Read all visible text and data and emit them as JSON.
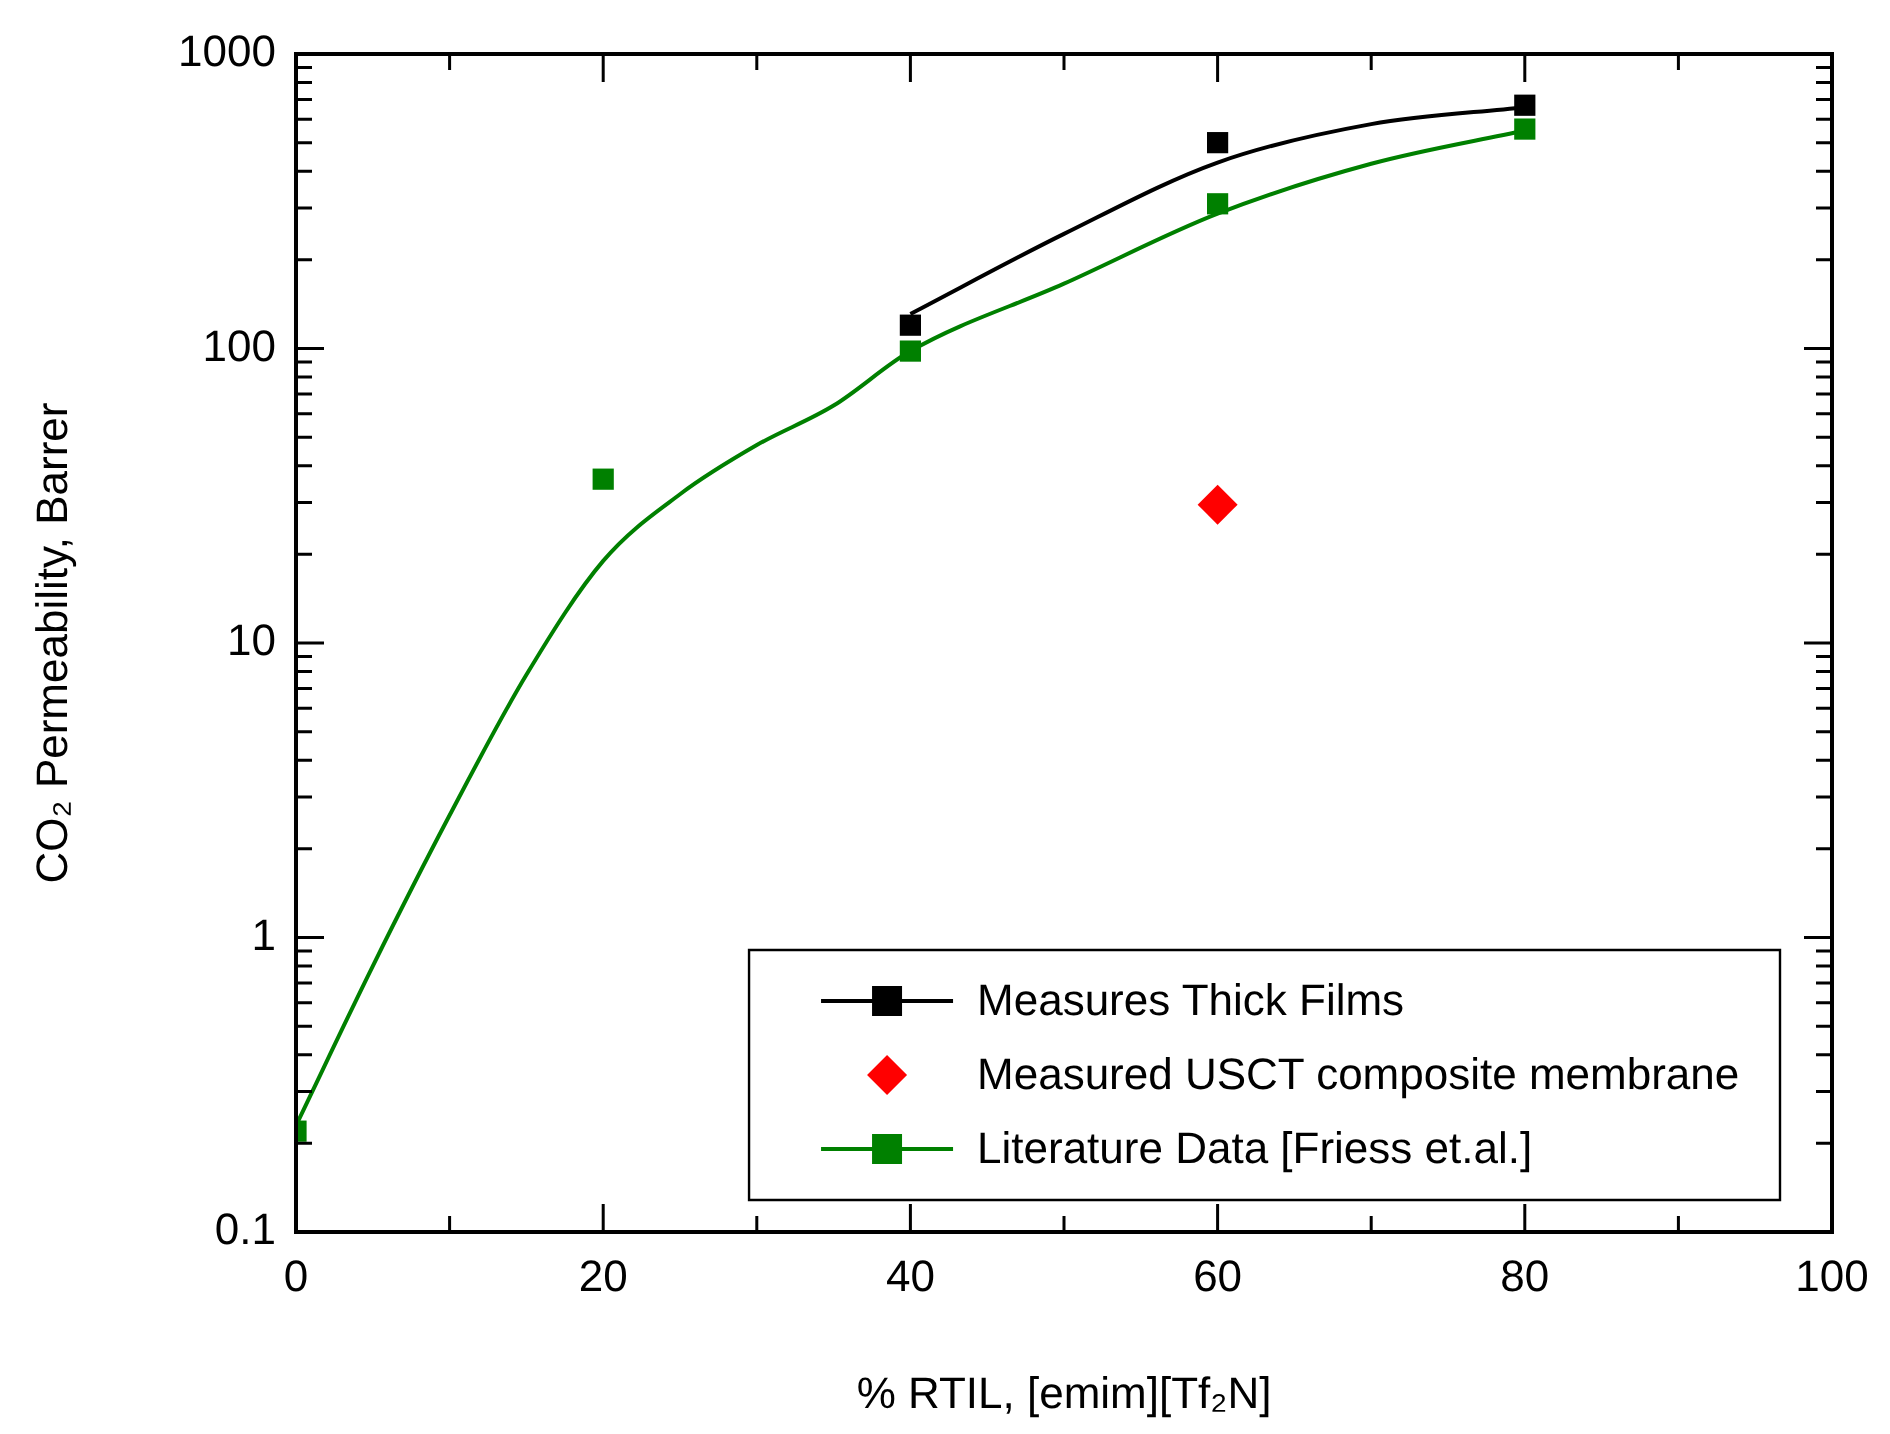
{
  "chart_data": {
    "type": "scatter",
    "xlabel": "% RTIL, [emim][Tf₂N]",
    "ylabel": "CO₂ Permeability, Barrer",
    "xlim": [
      0,
      100
    ],
    "xticks": [
      0,
      {
        "value": 10,
        "label": null
      },
      20,
      {
        "value": 30,
        "label": null
      },
      40,
      {
        "value": 50,
        "label": null
      },
      60,
      {
        "value": 70,
        "label": null
      },
      80,
      {
        "value": 90,
        "label": null
      },
      100
    ],
    "ylim": [
      0.1,
      1000
    ],
    "log": "y",
    "yticks": [
      0.1,
      {
        "value": 0.2,
        "label": null
      },
      {
        "value": 0.3,
        "label": null
      },
      {
        "value": 0.4,
        "label": null
      },
      {
        "value": 0.5,
        "label": null
      },
      {
        "value": 0.6,
        "label": null
      },
      {
        "value": 0.7,
        "label": null
      },
      {
        "value": 0.8,
        "label": null
      },
      {
        "value": 0.9,
        "label": null
      },
      1,
      {
        "value": 2,
        "label": null
      },
      {
        "value": 3,
        "label": null
      },
      {
        "value": 4,
        "label": null
      },
      {
        "value": 5,
        "label": null
      },
      {
        "value": 6,
        "label": null
      },
      {
        "value": 7,
        "label": null
      },
      {
        "value": 8,
        "label": null
      },
      {
        "value": 9,
        "label": null
      },
      10,
      {
        "value": 20,
        "label": null
      },
      {
        "value": 30,
        "label": null
      },
      {
        "value": 40,
        "label": null
      },
      {
        "value": 50,
        "label": null
      },
      {
        "value": 60,
        "label": null
      },
      {
        "value": 70,
        "label": null
      },
      {
        "value": 80,
        "label": null
      },
      {
        "value": 90,
        "label": null
      },
      100,
      {
        "value": 200,
        "label": null
      },
      {
        "value": 300,
        "label": null
      },
      {
        "value": 400,
        "label": null
      },
      {
        "value": 500,
        "label": null
      },
      {
        "value": 600,
        "label": null
      },
      {
        "value": 700,
        "label": null
      },
      {
        "value": 800,
        "label": null
      },
      {
        "value": 900,
        "label": null
      },
      1000
    ],
    "grid": false,
    "legend": "bottom right",
    "series": [
      {
        "type": "line",
        "color": "#000000",
        "marker": "none",
        "x": [
          40,
          50,
          60,
          70,
          80
        ],
        "values": [
          131,
          245,
          428,
          578,
          660
        ]
      },
      {
        "type": "line",
        "color": "#008000",
        "marker": "none",
        "x": [
          0,
          5,
          10,
          15,
          20,
          25,
          30,
          35,
          40,
          50,
          60,
          70,
          80
        ],
        "values": [
          0.23,
          0.8,
          2.6,
          7.8,
          19,
          32,
          47,
          64,
          98,
          166,
          287,
          424,
          550
        ]
      },
      {
        "name": "Measures Thick Films",
        "color": "#000000",
        "marker": "square",
        "x": [
          40,
          60,
          80
        ],
        "values": [
          120,
          500,
          670
        ]
      },
      {
        "name": "Measured USCT composite membrane",
        "color": "#ff0000",
        "marker": "diamond",
        "x": [
          60
        ],
        "values": [
          29.5
        ]
      },
      {
        "name": "Literature Data [Friess et.al.]",
        "color": "#008000",
        "marker": "square",
        "x": [
          0,
          20,
          40,
          60,
          80
        ],
        "values": [
          0.22,
          36,
          98,
          310,
          556
        ]
      }
    ]
  }
}
